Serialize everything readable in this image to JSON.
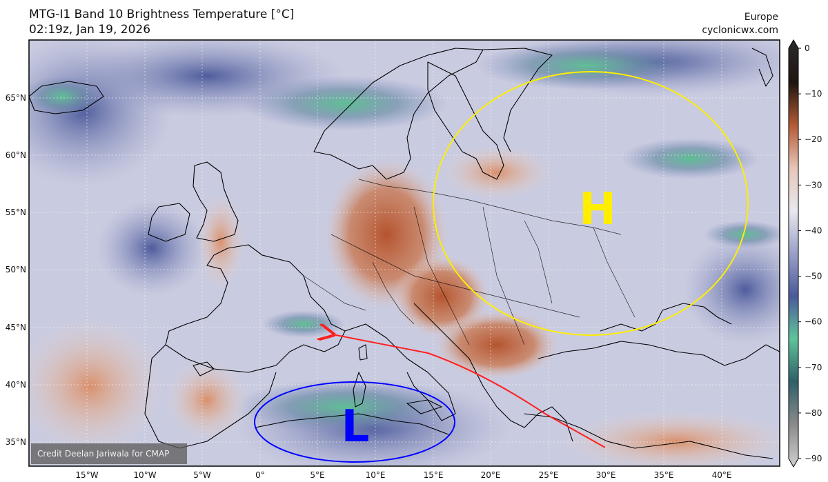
{
  "header": {
    "title_line1": "MTG-I1 Band 10 Brightness Temperature [°C]",
    "title_line2": "02:19z, Jan 19, 2026",
    "region": "Europe",
    "source": "cyclonicwx.com"
  },
  "map": {
    "lat_labels": [
      "65°N",
      "60°N",
      "55°N",
      "50°N",
      "45°N",
      "40°N",
      "35°N"
    ],
    "lon_labels": [
      "15°W",
      "10°W",
      "5°W",
      "0°",
      "5°E",
      "10°E",
      "15°E",
      "20°E",
      "25°E",
      "30°E",
      "35°E",
      "40°E"
    ],
    "high_label": "H",
    "low_label": "L",
    "high_color": "#ffee00",
    "low_color": "#0000ff",
    "arrow_color": "#ff2020",
    "credit": "Credit Deelan Jariwala for CMAP"
  },
  "colorbar": {
    "ticks": [
      "0",
      "−10",
      "−20",
      "−30",
      "−40",
      "−50",
      "−60",
      "−70",
      "−80",
      "−90"
    ],
    "colors": [
      "#2b2b2b",
      "#1f1510",
      "#b55a36",
      "#e6c6b8",
      "#e8e8ee",
      "#9aa0c8",
      "#4a5a9a",
      "#5fc49a",
      "#2f5f6a",
      "#8a8a8a",
      "#d0d0d0"
    ]
  }
}
